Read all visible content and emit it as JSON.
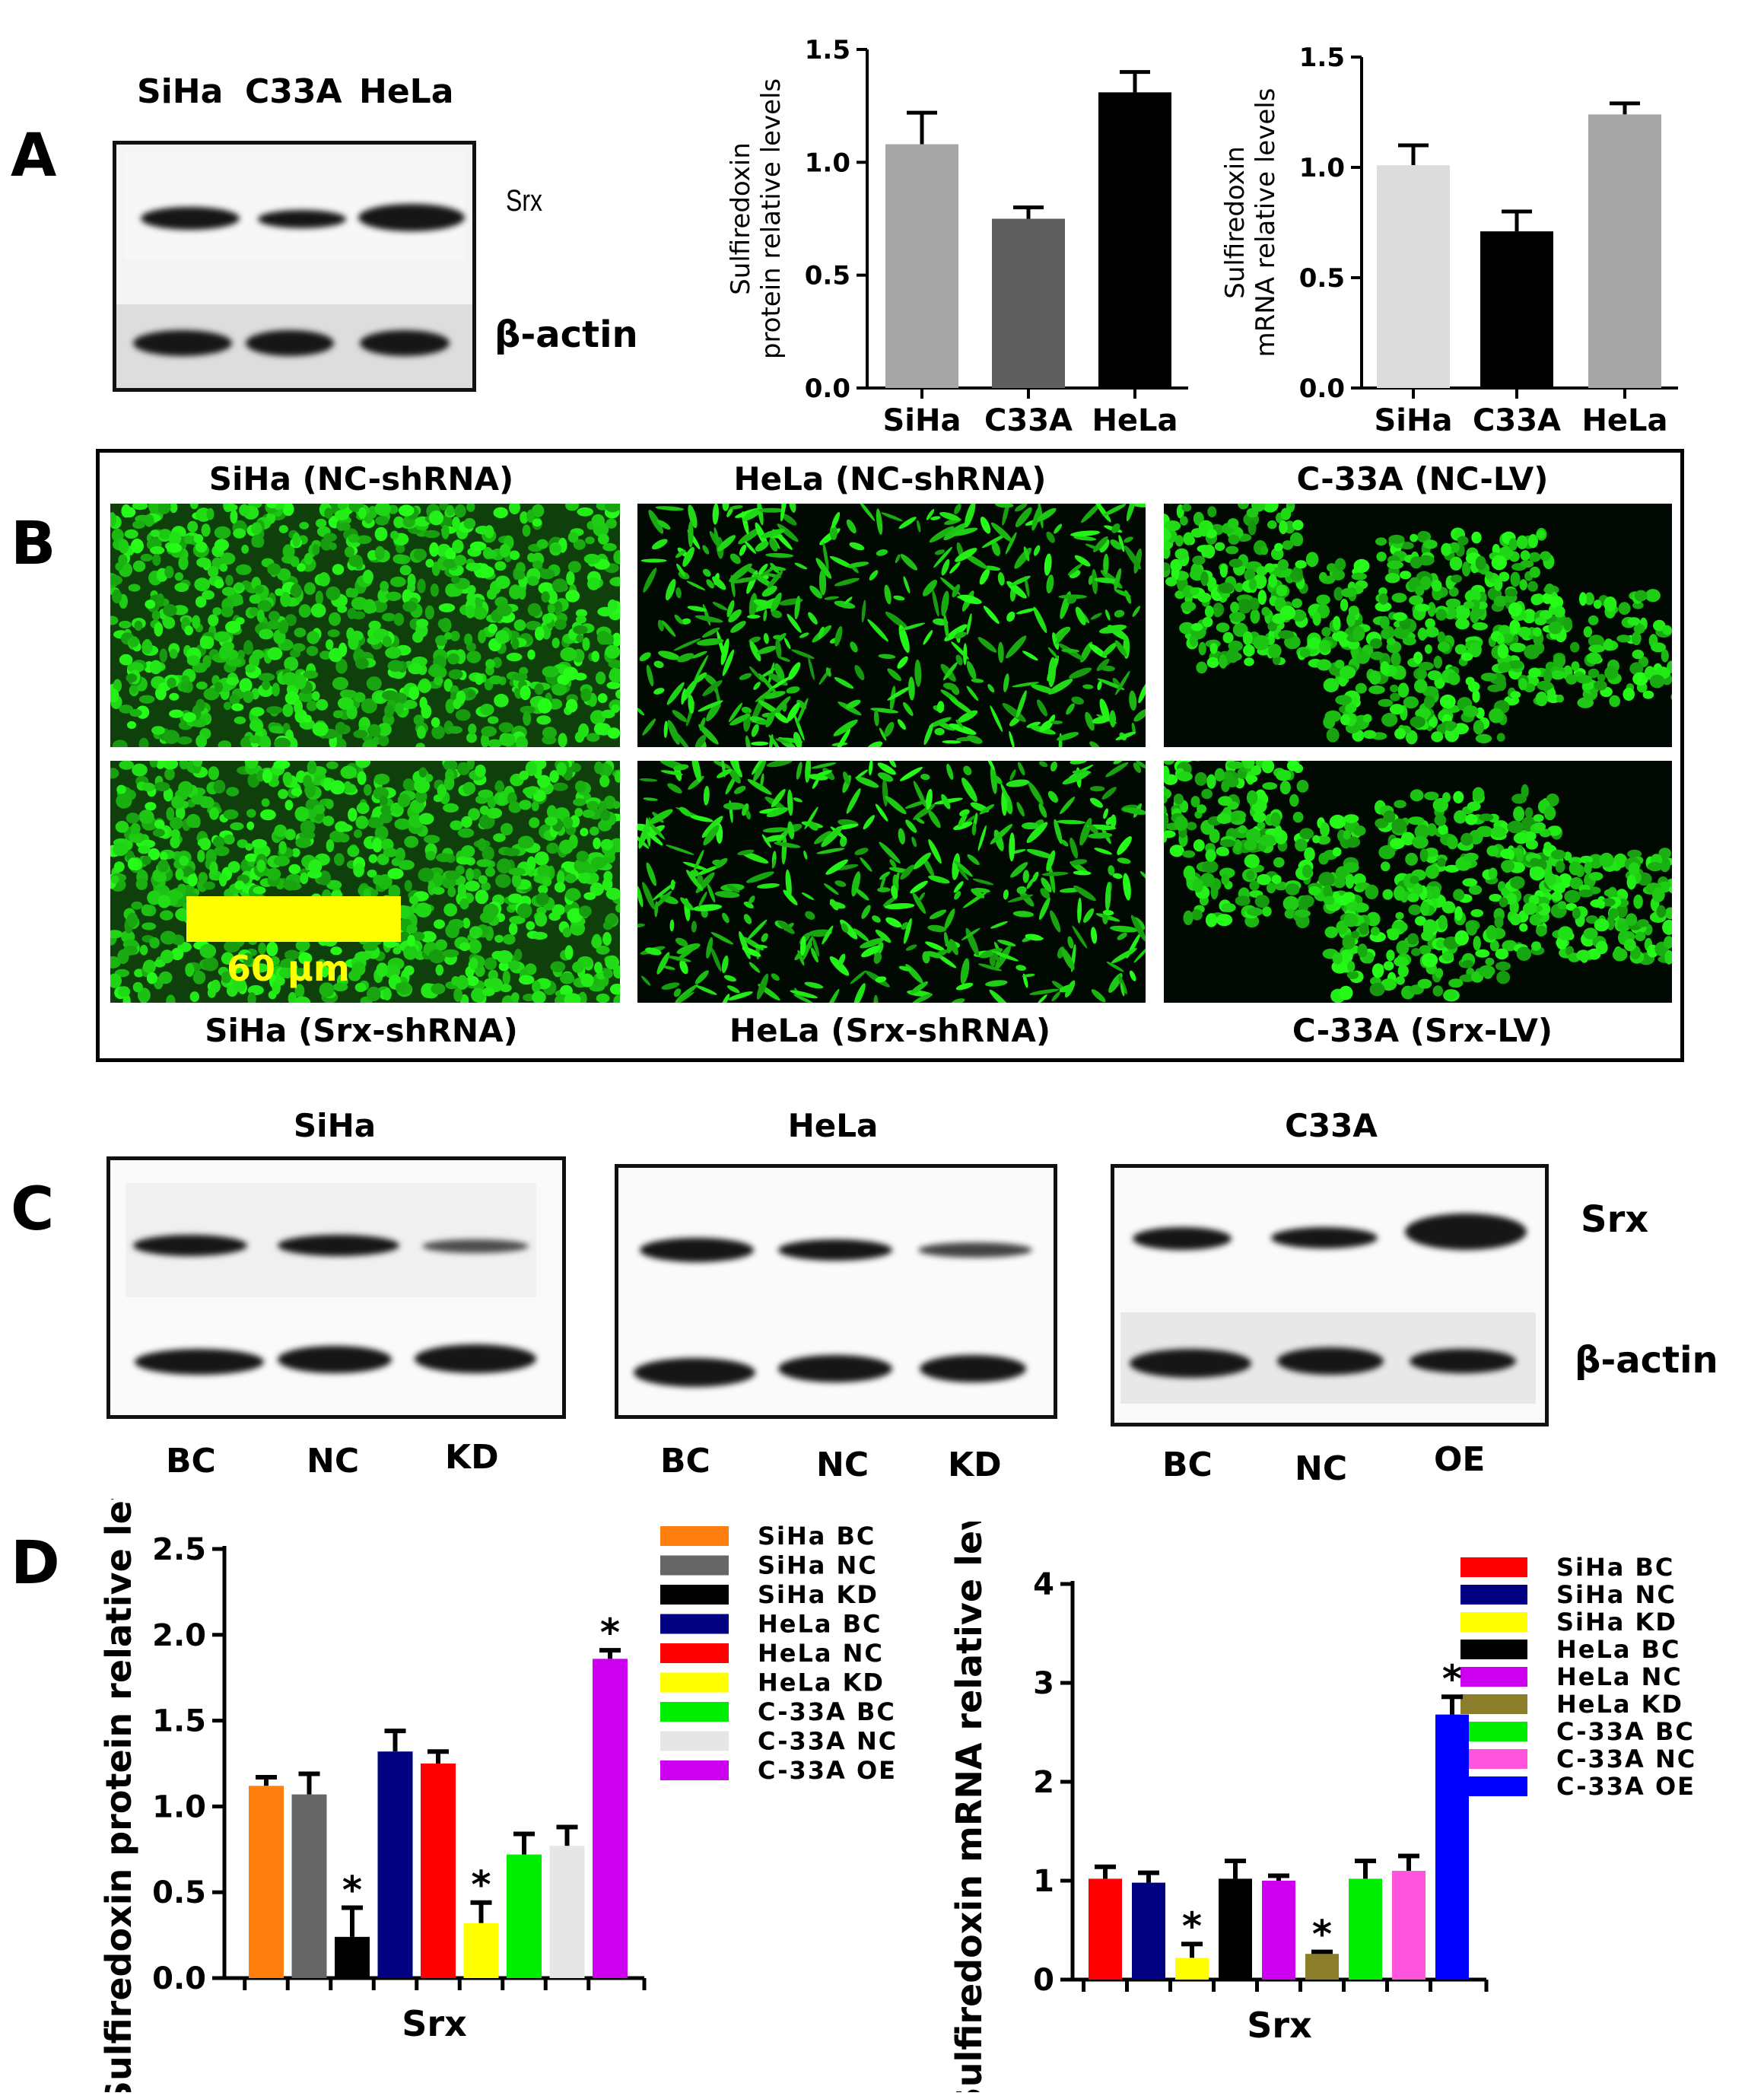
{
  "panel_labels": [
    "A",
    "B",
    "C",
    "D"
  ],
  "panel_a": {
    "blot_lanes": [
      "SiHa",
      "C33A",
      "HeLa"
    ],
    "blot_labels": {
      "top": "Srx",
      "bottom": "β-actin"
    }
  },
  "panel_b": {
    "top_titles": [
      "SiHa (NC-shRNA)",
      "HeLa (NC-shRNA)",
      "C-33A (NC-LV)"
    ],
    "bottom_titles": [
      "SiHa (Srx-shRNA)",
      "HeLa (Srx-shRNA)",
      "C-33A (Srx-LV)"
    ],
    "scale_bar": "60 μm"
  },
  "panel_c": {
    "blots": [
      {
        "title": "SiHa",
        "lanes": [
          "BC",
          "NC",
          "KD"
        ]
      },
      {
        "title": "HeLa",
        "lanes": [
          "BC",
          "NC",
          "KD"
        ]
      },
      {
        "title": "C33A",
        "lanes": [
          "BC",
          "NC",
          "OE"
        ]
      }
    ],
    "blot_labels": {
      "top": "Srx",
      "bottom": "β-actin"
    }
  },
  "chart_data": [
    {
      "type": "bar",
      "ylabel_lines": [
        "Sulfiredoxin",
        "protein relative levels"
      ],
      "categories": [
        "SiHa",
        "C33A",
        "HeLa"
      ],
      "values": [
        1.08,
        0.75,
        1.31
      ],
      "errors": [
        0.14,
        0.05,
        0.09
      ],
      "colors": [
        "#a6a6a6",
        "#5f5f5f",
        "#000000"
      ],
      "ylim": [
        0,
        1.5
      ],
      "yticks": [
        "0.0",
        "0.5",
        "1.0",
        "1.5"
      ]
    },
    {
      "type": "bar",
      "ylabel_lines": [
        "Sulfiredoxin",
        "mRNA relative levels"
      ],
      "categories": [
        "SiHa",
        "C33A",
        "HeLa"
      ],
      "values": [
        1.01,
        0.71,
        1.24
      ],
      "errors": [
        0.09,
        0.09,
        0.05
      ],
      "colors": [
        "#dcdcdc",
        "#000000",
        "#a6a6a6"
      ],
      "ylim": [
        0,
        1.5
      ],
      "yticks": [
        "0.0",
        "0.5",
        "1.0",
        "1.5"
      ]
    },
    {
      "type": "bar",
      "ylabel": "Sulfiredoxin protein relative levels",
      "xlabel": "Srx",
      "series": [
        {
          "name": "SiHa BC",
          "value": 1.12,
          "error": 0.05,
          "color": "#ff7f0e",
          "star": false
        },
        {
          "name": "SiHa NC",
          "value": 1.07,
          "error": 0.12,
          "color": "#666666",
          "star": false
        },
        {
          "name": "SiHa KD",
          "value": 0.24,
          "error": 0.17,
          "color": "#000000",
          "star": true
        },
        {
          "name": "HeLa BC",
          "value": 1.32,
          "error": 0.12,
          "color": "#000080",
          "star": false
        },
        {
          "name": "HeLa NC",
          "value": 1.25,
          "error": 0.07,
          "color": "#ff0000",
          "star": false
        },
        {
          "name": "HeLa KD",
          "value": 0.32,
          "error": 0.12,
          "color": "#ffff00",
          "star": true
        },
        {
          "name": "C-33A BC",
          "value": 0.72,
          "error": 0.12,
          "color": "#00ee00",
          "star": false
        },
        {
          "name": "C-33A NC",
          "value": 0.77,
          "error": 0.11,
          "color": "#e6e6e6",
          "star": false
        },
        {
          "name": "C-33A OE",
          "value": 1.86,
          "error": 0.05,
          "color": "#cc00ee",
          "star": true
        }
      ],
      "ylim": [
        0,
        2.5
      ],
      "yticks": [
        "0.0",
        "0.5",
        "1.0",
        "1.5",
        "2.0",
        "2.5"
      ],
      "star_symbol": "*"
    },
    {
      "type": "bar",
      "ylabel": "Sulfiredoxin mRNA relative levels",
      "xlabel": "Srx",
      "series": [
        {
          "name": "SiHa BC",
          "value": 1.02,
          "error": 0.12,
          "color": "#ff0000",
          "star": false
        },
        {
          "name": "SiHa NC",
          "value": 0.98,
          "error": 0.1,
          "color": "#000080",
          "star": false
        },
        {
          "name": "SiHa KD",
          "value": 0.22,
          "error": 0.14,
          "color": "#ffff00",
          "star": true
        },
        {
          "name": "HeLa BC",
          "value": 1.02,
          "error": 0.18,
          "color": "#000000",
          "star": false
        },
        {
          "name": "HeLa NC",
          "value": 1.0,
          "error": 0.05,
          "color": "#cc00ee",
          "star": false
        },
        {
          "name": "HeLa KD",
          "value": 0.26,
          "error": 0.02,
          "color": "#8b7d2a",
          "star": true
        },
        {
          "name": "C-33A BC",
          "value": 1.02,
          "error": 0.18,
          "color": "#00ee00",
          "star": false
        },
        {
          "name": "C-33A NC",
          "value": 1.1,
          "error": 0.15,
          "color": "#ff55dd",
          "star": false
        },
        {
          "name": "C-33A OE",
          "value": 2.68,
          "error": 0.18,
          "color": "#0000ff",
          "star": true
        }
      ],
      "ylim": [
        0,
        4
      ],
      "yticks": [
        "0",
        "1",
        "2",
        "3",
        "4"
      ],
      "star_symbol": "*"
    }
  ]
}
